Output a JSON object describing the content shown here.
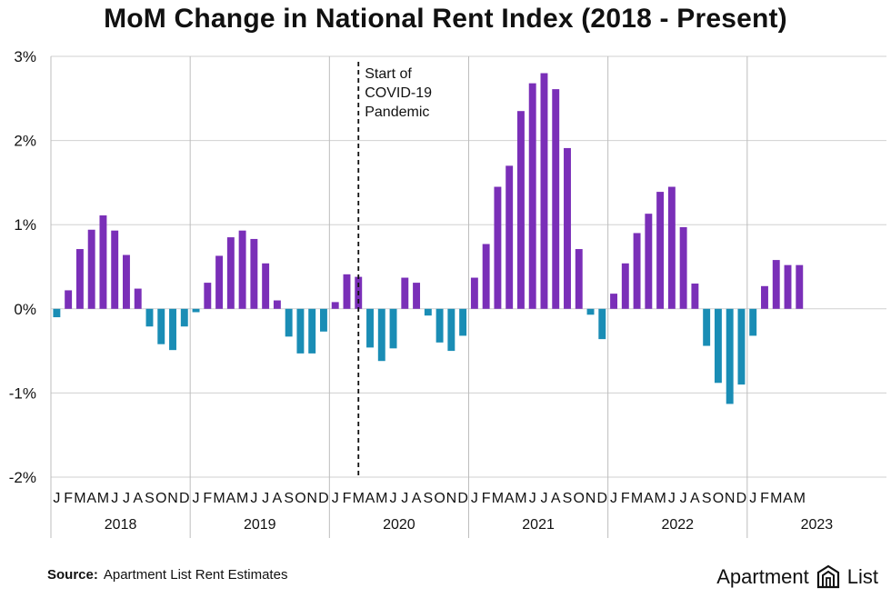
{
  "chart_data": {
    "type": "bar",
    "title": "MoM Change in National Rent Index (2018 - Present)",
    "ylim": [
      -2,
      3
    ],
    "yticks": [
      3,
      2,
      1,
      0,
      -1,
      -2
    ],
    "ytick_labels": [
      "3%",
      "2%",
      "1%",
      "0%",
      "-1%",
      "-2%"
    ],
    "month_labels": [
      "J",
      "F",
      "M",
      "A",
      "M",
      "J",
      "J",
      "A",
      "S",
      "O",
      "N",
      "D"
    ],
    "positive_color": "#7a2fb8",
    "negative_color": "#1a8db5",
    "grid": true,
    "annotation": {
      "text": [
        "Start of",
        "COVID-19",
        "Pandemic"
      ],
      "month_index": 26.5
    },
    "series": [
      {
        "year": "2018",
        "values": [
          -0.1,
          0.22,
          0.71,
          0.94,
          1.11,
          0.93,
          0.64,
          0.24,
          -0.21,
          -0.42,
          -0.49,
          -0.21
        ]
      },
      {
        "year": "2019",
        "values": [
          -0.04,
          0.31,
          0.63,
          0.85,
          0.93,
          0.83,
          0.54,
          0.1,
          -0.33,
          -0.53,
          -0.53,
          -0.27
        ]
      },
      {
        "year": "2020",
        "values": [
          0.08,
          0.41,
          0.38,
          -0.46,
          -0.62,
          -0.47,
          0.37,
          0.31,
          -0.08,
          -0.4,
          -0.5,
          -0.32
        ]
      },
      {
        "year": "2021",
        "values": [
          0.37,
          0.77,
          1.45,
          1.7,
          2.35,
          2.68,
          2.8,
          2.61,
          1.91,
          0.71,
          -0.07,
          -0.36
        ]
      },
      {
        "year": "2022",
        "values": [
          0.18,
          0.54,
          0.9,
          1.13,
          1.39,
          1.45,
          0.97,
          0.3,
          -0.44,
          -0.88,
          -1.13,
          -0.9
        ]
      },
      {
        "year": "2023",
        "values": [
          -0.32,
          0.27,
          0.58,
          0.52,
          0.52
        ]
      }
    ]
  },
  "source": {
    "label": "Source:",
    "text": "Apartment List Rent Estimates"
  },
  "logo": {
    "left": "Apartment",
    "right": "List"
  }
}
